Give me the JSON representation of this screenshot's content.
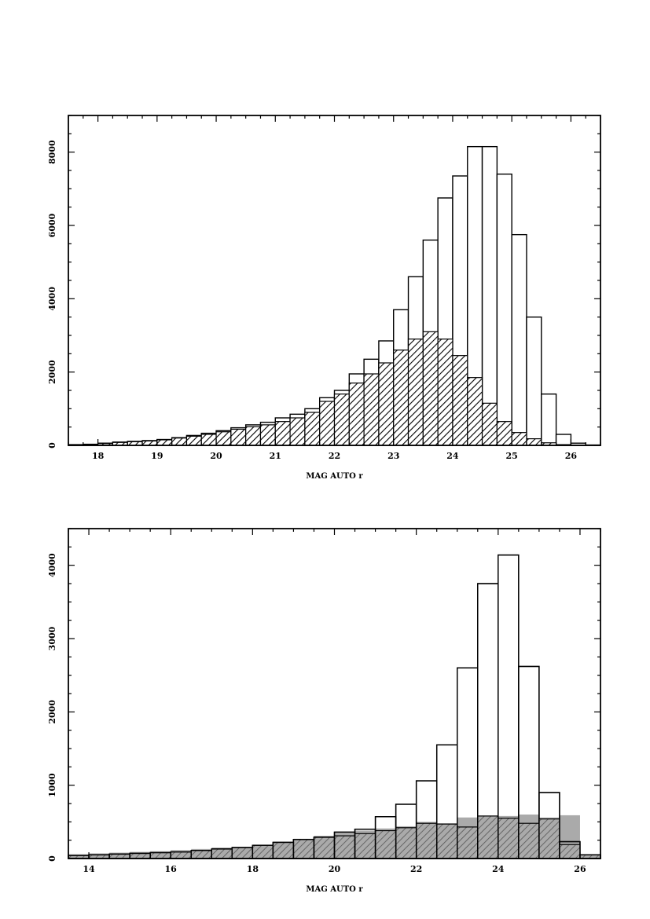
{
  "page": {
    "background": "#ffffff"
  },
  "chart_data": [
    {
      "type": "bar",
      "xlabel": "MAG AUTO r",
      "ylabel": "",
      "xlim": [
        17.5,
        26.5
      ],
      "ylim": [
        0,
        9000
      ],
      "bin_width": 0.25,
      "x_ticks": [
        18,
        19,
        20,
        21,
        22,
        23,
        24,
        25,
        26
      ],
      "x_tick_labels": [
        "18",
        "19",
        "20",
        "21",
        "22",
        "23",
        "24",
        "25",
        "26"
      ],
      "y_ticks": [
        0,
        2000,
        4000,
        6000,
        8000
      ],
      "y_tick_labels": [
        "0",
        "2000",
        "4000",
        "6000",
        "8000"
      ],
      "series": [
        {
          "style": "open",
          "color": "#000000",
          "bin_starts": [
            17.5,
            17.75,
            18.0,
            18.25,
            18.5,
            18.75,
            19.0,
            19.25,
            19.5,
            19.75,
            20.0,
            20.25,
            20.5,
            20.75,
            21.0,
            21.25,
            21.5,
            21.75,
            22.0,
            22.25,
            22.5,
            22.75,
            23.0,
            23.25,
            23.5,
            23.75,
            24.0,
            24.25,
            24.5,
            24.75,
            25.0,
            25.25,
            25.5,
            25.75,
            26.0,
            26.25
          ],
          "values": [
            20,
            30,
            60,
            90,
            110,
            130,
            160,
            210,
            270,
            330,
            400,
            480,
            560,
            630,
            750,
            850,
            1000,
            1300,
            1500,
            1950,
            2350,
            2850,
            3700,
            4600,
            5600,
            6750,
            7350,
            8150,
            8150,
            7400,
            5750,
            3500,
            1400,
            300,
            60,
            10
          ]
        },
        {
          "style": "hatched",
          "color": "#000000",
          "bin_starts": [
            17.5,
            17.75,
            18.0,
            18.25,
            18.5,
            18.75,
            19.0,
            19.25,
            19.5,
            19.75,
            20.0,
            20.25,
            20.5,
            20.75,
            21.0,
            21.25,
            21.5,
            21.75,
            22.0,
            22.25,
            22.5,
            22.75,
            23.0,
            23.25,
            23.5,
            23.75,
            24.0,
            24.25,
            24.5,
            24.75,
            25.0,
            25.25,
            25.5,
            25.75,
            26.0,
            26.25
          ],
          "values": [
            15,
            25,
            50,
            80,
            100,
            120,
            150,
            200,
            250,
            300,
            370,
            440,
            510,
            560,
            650,
            750,
            900,
            1200,
            1400,
            1700,
            1950,
            2250,
            2600,
            2900,
            3100,
            2900,
            2450,
            1850,
            1150,
            650,
            350,
            180,
            70,
            20,
            5,
            0
          ]
        }
      ]
    },
    {
      "type": "bar",
      "xlabel": "MAG AUTO r",
      "ylabel": "",
      "xlim": [
        13.5,
        26.5
      ],
      "ylim": [
        0,
        4500
      ],
      "bin_width": 0.5,
      "x_ticks": [
        14,
        16,
        18,
        20,
        22,
        24,
        26
      ],
      "x_tick_labels": [
        "14",
        "16",
        "18",
        "20",
        "22",
        "24",
        "26"
      ],
      "y_ticks": [
        0,
        1000,
        2000,
        3000,
        4000
      ],
      "y_tick_labels": [
        "0",
        "1000",
        "2000",
        "3000",
        "4000"
      ],
      "series": [
        {
          "style": "filled",
          "color": "#aaaaaa",
          "bin_starts": [
            13.5,
            14.0,
            14.5,
            15.0,
            15.5,
            16.0,
            16.5,
            17.0,
            17.5,
            18.0,
            18.5,
            19.0,
            19.5,
            20.0,
            20.5,
            21.0,
            21.5,
            22.0,
            22.5,
            23.0,
            23.5,
            24.0,
            24.5,
            25.0,
            25.5,
            26.0
          ],
          "values": [
            60,
            70,
            80,
            90,
            100,
            115,
            130,
            150,
            160,
            190,
            230,
            270,
            310,
            350,
            380,
            410,
            440,
            500,
            480,
            560,
            580,
            580,
            600,
            560,
            590,
            20
          ]
        },
        {
          "style": "open",
          "color": "#000000",
          "bin_starts": [
            13.5,
            14.0,
            14.5,
            15.0,
            15.5,
            16.0,
            16.5,
            17.0,
            17.5,
            18.0,
            18.5,
            19.0,
            19.5,
            20.0,
            20.5,
            21.0,
            21.5,
            22.0,
            22.5,
            23.0,
            23.5,
            24.0,
            24.5,
            25.0,
            25.5,
            26.0
          ],
          "values": [
            40,
            50,
            60,
            70,
            80,
            90,
            110,
            130,
            150,
            180,
            220,
            260,
            290,
            360,
            400,
            570,
            740,
            1060,
            1550,
            2600,
            3750,
            4140,
            2620,
            900,
            230,
            50
          ]
        },
        {
          "style": "hatched",
          "color": "#000000",
          "bin_starts": [
            13.5,
            14.0,
            14.5,
            15.0,
            15.5,
            16.0,
            16.5,
            17.0,
            17.5,
            18.0,
            18.5,
            19.0,
            19.5,
            20.0,
            20.5,
            21.0,
            21.5,
            22.0,
            22.5,
            23.0,
            23.5,
            24.0,
            24.5,
            25.0,
            25.5,
            26.0
          ],
          "values": [
            40,
            50,
            60,
            70,
            80,
            90,
            110,
            130,
            150,
            180,
            220,
            260,
            290,
            310,
            340,
            380,
            420,
            480,
            470,
            430,
            580,
            550,
            480,
            540,
            190,
            50
          ]
        }
      ]
    }
  ]
}
